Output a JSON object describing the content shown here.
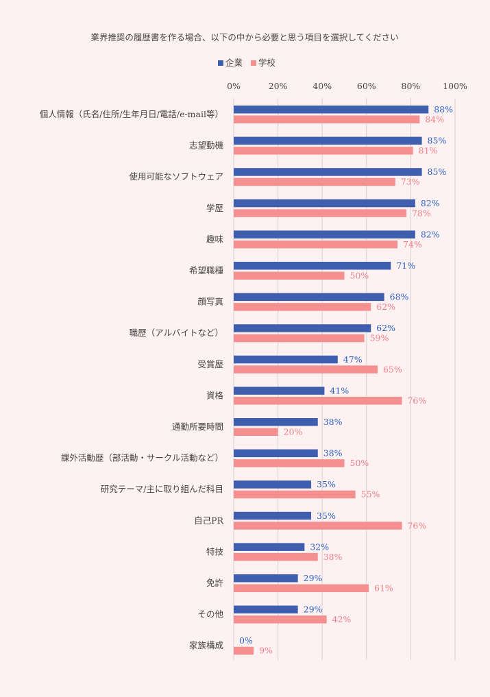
{
  "chart_data": {
    "type": "bar",
    "orientation": "horizontal",
    "title": "業界推奨の履歴書を作る場合、以下の中から必要と思う項目を選択してください",
    "legend_position": "top",
    "grid": true,
    "xlim": [
      0,
      100
    ],
    "x_ticks": [
      "0%",
      "20%",
      "40%",
      "60%",
      "80%",
      "100%"
    ],
    "value_suffix": "%",
    "categories": [
      "個人情報（氏名/住所/生年月日/電話/e-mail等）",
      "志望動機",
      "使用可能なソフトウェア",
      "学歴",
      "趣味",
      "希望職種",
      "顔写真",
      "職歴（アルバイトなど）",
      "受賞歴",
      "資格",
      "通勤所要時間",
      "課外活動歴（部活動・サークル活動など）",
      "研究テーマ/主に取り組んだ科目",
      "自己PR",
      "特技",
      "免許",
      "その他",
      "家族構成"
    ],
    "series": [
      {
        "name": "企業",
        "color": "#3f5fae",
        "label_color": "#2a63c4",
        "values": [
          88,
          85,
          85,
          82,
          82,
          71,
          68,
          62,
          47,
          41,
          38,
          38,
          35,
          35,
          32,
          29,
          29,
          0
        ]
      },
      {
        "name": "学校",
        "color": "#f59090",
        "label_color": "#ef7f88",
        "values": [
          84,
          81,
          73,
          78,
          74,
          50,
          62,
          59,
          65,
          76,
          20,
          50,
          55,
          76,
          38,
          61,
          42,
          9
        ]
      }
    ]
  }
}
